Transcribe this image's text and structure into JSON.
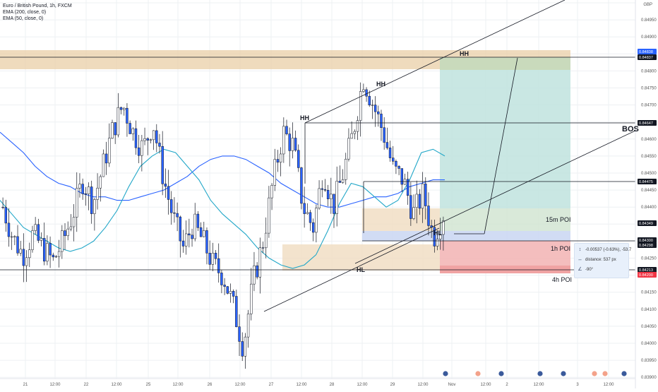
{
  "legend": {
    "symbol": "Euro / British Pound, 1h, FXCM",
    "ema200": "EMA (200, close, 0)",
    "ema50": "EMA (50, close, 0)"
  },
  "axis": {
    "currency": "GBP",
    "y_ticks": [
      "0.85000",
      "0.84950",
      "0.84900",
      "0.84850",
      "0.84800",
      "0.84750",
      "0.84700",
      "0.84650",
      "0.84600",
      "0.84550",
      "0.84500",
      "0.84450",
      "0.84400",
      "0.84350",
      "0.84300",
      "0.84250",
      "0.84200",
      "0.84150",
      "0.84100",
      "0.84050",
      "0.84000",
      "0.83950",
      "0.83900"
    ],
    "x_ticks": [
      "21",
      "12:00",
      "22",
      "12:00",
      "25",
      "12:00",
      "26",
      "12:00",
      "27",
      "12:00",
      "28",
      "12:00",
      "29",
      "12:00",
      "Nov",
      "12:00",
      "2",
      "12:00",
      "3",
      "12:00"
    ]
  },
  "price_tags": [
    {
      "text": "0.84838",
      "color": "#2962ff",
      "text_color": "#ffffff"
    },
    {
      "text": "0.84837",
      "color": "#131722",
      "text_color": "#ffffff"
    },
    {
      "text": "0.84647",
      "color": "#131722",
      "text_color": "#ffffff"
    },
    {
      "text": "0.84475",
      "color": "#131722",
      "text_color": "#ffffff"
    },
    {
      "text": "0.84349",
      "color": "#131722",
      "text_color": "#ffffff"
    },
    {
      "text": "0.84300",
      "color": "#131722",
      "text_color": "#ffffff"
    },
    {
      "text": "0.84298",
      "color": "#131722",
      "text_color": "#ffffff"
    },
    {
      "text": "0.84213",
      "color": "#131722",
      "text_color": "#ffffff"
    },
    {
      "text": "0.84200",
      "color": "#f23645",
      "text_color": "#ffffff"
    }
  ],
  "annotations": {
    "hh_top": "HH",
    "hh_mid": "HH",
    "hh_left": "HH",
    "bos": "BOS",
    "hl_low": "HL",
    "hl_right": "HL",
    "poi_15m": "15m POI",
    "poi_1h": "1h POI",
    "poi_4h": "4h POI"
  },
  "measure": {
    "change": "-0.00537 (-0.63%), -53.7",
    "distance": "distance: 537 px",
    "angle": "-90°"
  },
  "colors": {
    "bull": "#ffffff",
    "bear": "#2962ff",
    "ema200": "#2962ff",
    "ema50": "#22a7c8",
    "supply_zone": "#e9cfa7",
    "poi_zone": "#f0dcc0",
    "target_zone": "#bfe3de",
    "stop_zone": "#f3b7b7",
    "blue_zone": "#c9d6f2"
  },
  "chart_data": {
    "type": "candlestick",
    "symbol": "EUR/GBP",
    "timeframe": "1h",
    "ylim": [
      0.8388,
      0.8502
    ],
    "series": [
      {
        "name": "EMA (200, close, 0)",
        "values": [
          0.8462,
          0.8459,
          0.8456,
          0.8452,
          0.8449,
          0.8447,
          0.8446,
          0.8444,
          0.8443,
          0.8443,
          0.8442,
          0.8442,
          0.8443,
          0.8444,
          0.8445,
          0.8447,
          0.8449,
          0.8452,
          0.8454,
          0.8455,
          0.8455,
          0.8454,
          0.8452,
          0.845,
          0.8447,
          0.8445,
          0.8443,
          0.8441,
          0.844,
          0.844,
          0.8441,
          0.8442,
          0.8443,
          0.8443,
          0.8444,
          0.8446,
          0.8447,
          0.8448,
          0.8448
        ]
      },
      {
        "name": "EMA (50, close, 0)",
        "values": [
          0.8442,
          0.8438,
          0.8434,
          0.8432,
          0.843,
          0.8428,
          0.8427,
          0.8428,
          0.843,
          0.8434,
          0.8439,
          0.8446,
          0.8452,
          0.8455,
          0.8457,
          0.8456,
          0.8452,
          0.8448,
          0.8442,
          0.8438,
          0.8435,
          0.8432,
          0.8428,
          0.8425,
          0.8423,
          0.8422,
          0.8423,
          0.8426,
          0.8433,
          0.8441,
          0.8447,
          0.8446,
          0.8443,
          0.844,
          0.8442,
          0.8448,
          0.8456,
          0.8457,
          0.8455
        ]
      },
      {
        "name": "close",
        "values": [
          0.844,
          0.8431,
          0.8426,
          0.8432,
          0.8428,
          0.8424,
          0.843,
          0.8438,
          0.8448,
          0.8441,
          0.8452,
          0.8463,
          0.847,
          0.8462,
          0.8457,
          0.8465,
          0.8449,
          0.8437,
          0.8428,
          0.8435,
          0.843,
          0.8423,
          0.842,
          0.8411,
          0.8399,
          0.8418,
          0.843,
          0.8448,
          0.8462,
          0.8458,
          0.844,
          0.8434,
          0.8451,
          0.844,
          0.845,
          0.8462,
          0.8478,
          0.847,
          0.8462,
          0.8451,
          0.8448,
          0.8438,
          0.8444,
          0.8431,
          0.8438
        ]
      }
    ],
    "levels": {
      "HH_top": 0.8484,
      "HH_mid": 0.8475,
      "HH_left": 0.8465,
      "BOS": 0.8465,
      "HL_low": 0.8421,
      "HL_right": 0.843
    },
    "zones": [
      {
        "name": "supply",
        "from": 0.8482,
        "to": 0.8488
      },
      {
        "name": "15m POI",
        "from": 0.843,
        "to": 0.8438
      },
      {
        "name": "1h POI",
        "from": 0.8421,
        "to": 0.843
      },
      {
        "name": "4h POI",
        "from": 0.8419,
        "to": 0.8421
      },
      {
        "name": "target",
        "from": 0.843,
        "to": 0.8484
      },
      {
        "name": "stop",
        "from": 0.842,
        "to": 0.843
      }
    ]
  }
}
